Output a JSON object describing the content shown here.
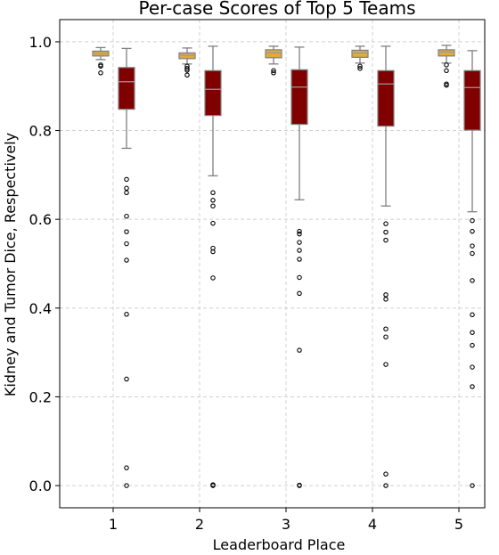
{
  "chart_data": {
    "type": "box",
    "title": "Per-case Scores of Top 5 Teams",
    "xlabel": "Leaderboard Place",
    "ylabel": "Kidney and Tumor Dice, Respectively",
    "ylim": [
      -0.05,
      1.05
    ],
    "yticks": [
      0.0,
      0.2,
      0.4,
      0.6,
      0.8,
      1.0
    ],
    "ytick_labels": [
      "0.0",
      "0.2",
      "0.4",
      "0.6",
      "0.8",
      "1.0"
    ],
    "categories": [
      "1",
      "2",
      "3",
      "4",
      "5"
    ],
    "grid": true,
    "series": [
      {
        "color": "#e2a93b",
        "boxes": [
          {
            "whislo": 0.96,
            "q1": 0.968,
            "med": 0.974,
            "q3": 0.979,
            "whishi": 0.987,
            "fliers": [
              0.948,
              0.945,
              0.93
            ]
          },
          {
            "whislo": 0.95,
            "q1": 0.962,
            "med": 0.97,
            "q3": 0.975,
            "whishi": 0.986,
            "fliers": [
              0.945,
              0.94,
              0.936,
              0.925
            ]
          },
          {
            "whislo": 0.95,
            "q1": 0.964,
            "med": 0.975,
            "q3": 0.982,
            "whishi": 0.99,
            "fliers": [
              0.935,
              0.93
            ]
          },
          {
            "whislo": 0.952,
            "q1": 0.965,
            "med": 0.975,
            "q3": 0.981,
            "whishi": 0.99,
            "fliers": [
              0.945,
              0.94
            ]
          },
          {
            "whislo": 0.952,
            "q1": 0.968,
            "med": 0.977,
            "q3": 0.982,
            "whishi": 0.992,
            "fliers": [
              0.948,
              0.935,
              0.905,
              0.902
            ]
          }
        ]
      },
      {
        "color": "#800000",
        "boxes": [
          {
            "whislo": 0.76,
            "q1": 0.848,
            "med": 0.91,
            "q3": 0.942,
            "whishi": 0.985,
            "fliers": [
              0.69,
              0.67,
              0.66,
              0.607,
              0.572,
              0.545,
              0.508,
              0.386,
              0.24,
              0.04,
              0.0
            ]
          },
          {
            "whislo": 0.698,
            "q1": 0.834,
            "med": 0.893,
            "q3": 0.935,
            "whishi": 0.99,
            "fliers": [
              0.66,
              0.643,
              0.63,
              0.591,
              0.535,
              0.527,
              0.468,
              0.002,
              0.0
            ]
          },
          {
            "whislo": 0.644,
            "q1": 0.814,
            "med": 0.898,
            "q3": 0.937,
            "whishi": 0.988,
            "fliers": [
              0.573,
              0.567,
              0.548,
              0.53,
              0.51,
              0.469,
              0.433,
              0.305,
              0.001,
              0.0
            ]
          },
          {
            "whislo": 0.63,
            "q1": 0.81,
            "med": 0.905,
            "q3": 0.935,
            "whishi": 0.99,
            "fliers": [
              0.59,
              0.571,
              0.553,
              0.43,
              0.42,
              0.353,
              0.335,
              0.273,
              0.026,
              0.0
            ]
          },
          {
            "whislo": 0.617,
            "q1": 0.801,
            "med": 0.897,
            "q3": 0.935,
            "whishi": 0.98,
            "fliers": [
              0.597,
              0.573,
              0.54,
              0.523,
              0.462,
              0.385,
              0.345,
              0.316,
              0.267,
              0.223,
              0.0
            ]
          }
        ]
      }
    ]
  }
}
